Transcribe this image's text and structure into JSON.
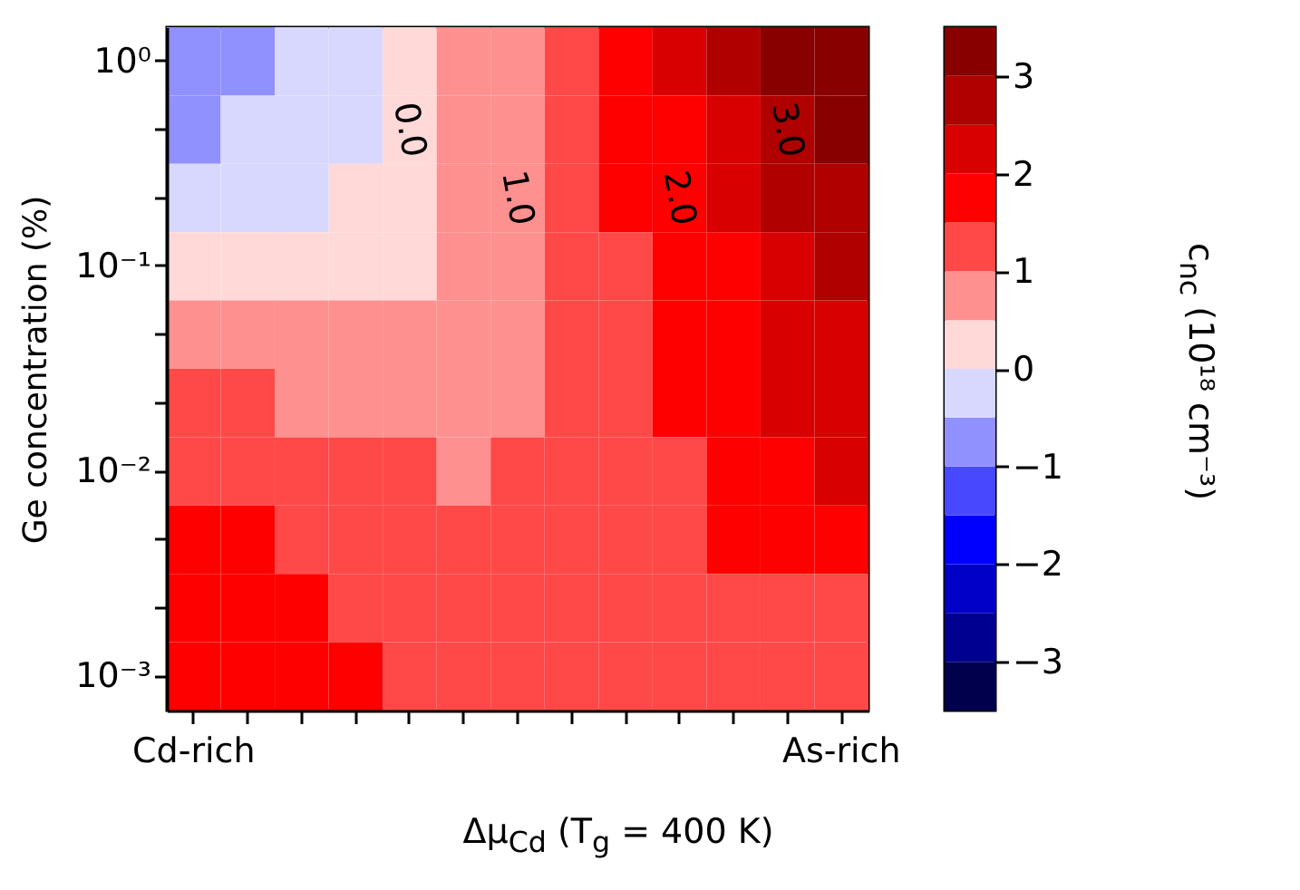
{
  "chart_data": {
    "type": "heatmap",
    "xlabel": "Δμ$_{Cd}$ (T$_{g}$ = 400 K)",
    "ylabel": "Ge concentration (%)",
    "clabel": "c$_{nc}$ (10¹⁸ cm⁻³)",
    "categories": [
      "Cd-rich",
      null,
      null,
      null,
      null,
      null,
      null,
      null,
      null,
      null,
      null,
      null,
      "As-rich"
    ],
    "y_categories": [
      "10⁰",
      null,
      null,
      "10⁻¹",
      null,
      null,
      "10⁻²",
      null,
      null,
      "10⁻³"
    ],
    "cells": [
      [
        -0.75,
        -0.75,
        -0.25,
        -0.25,
        0.25,
        0.75,
        0.75,
        1.25,
        1.75,
        2.25,
        2.75,
        3.25,
        3.25
      ],
      [
        -0.75,
        -0.25,
        -0.25,
        -0.25,
        0.25,
        0.75,
        0.75,
        1.25,
        1.75,
        1.75,
        2.25,
        2.75,
        3.25
      ],
      [
        -0.25,
        -0.25,
        -0.25,
        0.25,
        0.25,
        0.75,
        0.75,
        1.25,
        1.75,
        1.75,
        2.25,
        2.75,
        2.75
      ],
      [
        0.25,
        0.25,
        0.25,
        0.25,
        0.25,
        0.75,
        0.75,
        1.25,
        1.25,
        1.75,
        1.75,
        2.25,
        2.75
      ],
      [
        0.75,
        0.75,
        0.75,
        0.75,
        0.75,
        0.75,
        0.75,
        1.25,
        1.25,
        1.75,
        1.75,
        2.25,
        2.25
      ],
      [
        1.25,
        1.25,
        0.75,
        0.75,
        0.75,
        0.75,
        0.75,
        1.25,
        1.25,
        1.75,
        1.75,
        2.25,
        2.25
      ],
      [
        1.25,
        1.25,
        1.25,
        1.25,
        1.25,
        0.75,
        1.25,
        1.25,
        1.25,
        1.25,
        1.75,
        1.75,
        2.25
      ],
      [
        1.75,
        1.75,
        1.25,
        1.25,
        1.25,
        1.25,
        1.25,
        1.25,
        1.25,
        1.25,
        1.75,
        1.75,
        1.75
      ],
      [
        1.75,
        1.75,
        1.75,
        1.25,
        1.25,
        1.25,
        1.25,
        1.25,
        1.25,
        1.25,
        1.25,
        1.25,
        1.25
      ],
      [
        1.75,
        1.75,
        1.75,
        1.75,
        1.25,
        1.25,
        1.25,
        1.25,
        1.25,
        1.25,
        1.25,
        1.25,
        1.25
      ]
    ],
    "clim": [
      -3.5,
      3.5
    ],
    "cticks": [
      -3,
      -2,
      -1,
      0,
      1,
      2,
      3
    ],
    "annotations": [
      "0.0",
      "1.0",
      "2.0",
      "3.0"
    ]
  }
}
